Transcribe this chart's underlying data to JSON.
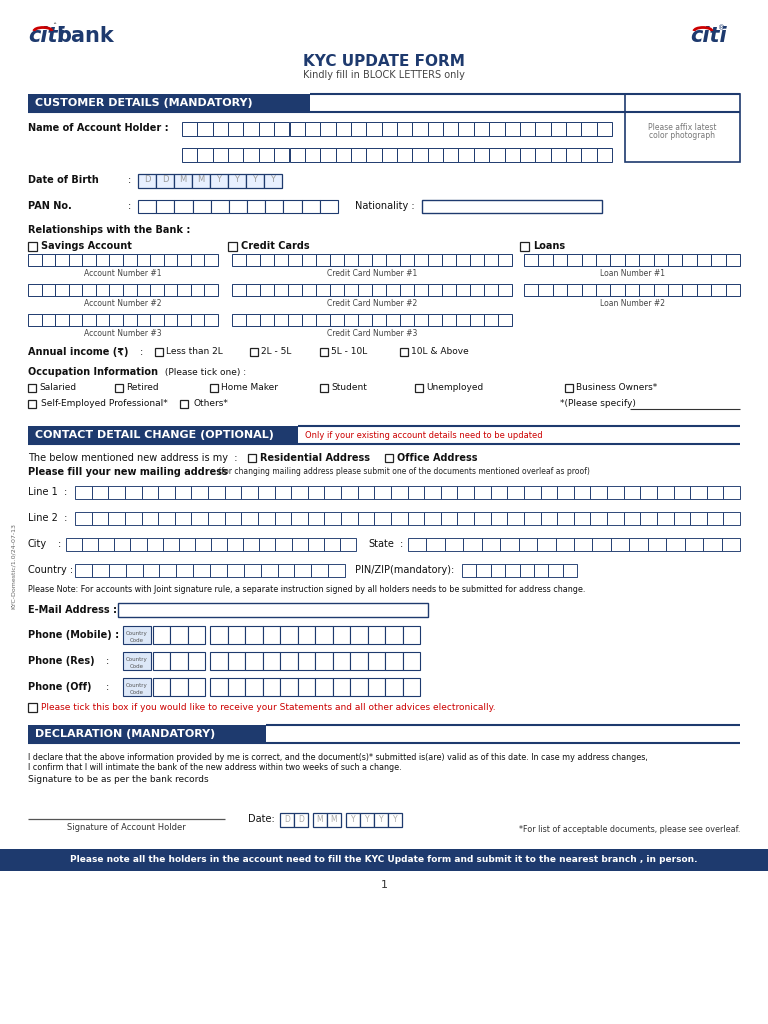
{
  "title": "KYC UPDATE FORM",
  "subtitle": "Kindly fill in BLOCK LETTERS only",
  "bg_color": "#ffffff",
  "dark_blue": "#1e3a6e",
  "medium_blue": "#1e3a6e",
  "header_bg": "#1e3a6e",
  "line_color": "#1e3a6e",
  "red_accent": "#cc0000",
  "orange_red": "#cc2200",
  "gray_text": "#555555",
  "body_text": "#111111",
  "dob_fill": "#e8f0ff",
  "page_num": "1",
  "footer_note_color": "#cc0000"
}
